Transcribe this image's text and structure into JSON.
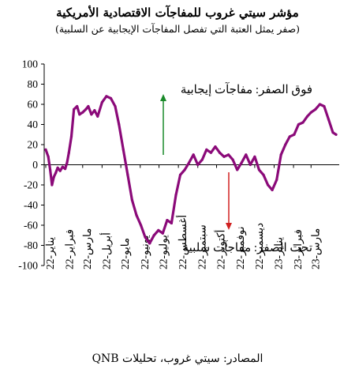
{
  "title": "مؤشر سيتي غروب للمفاجآت الاقتصادية الأمريكية",
  "subtitle": "(صفر يمثل العتبة التي تفصل المفاجآت الإيجابية عن السلبية)",
  "source": "المصادر: سيتي غروب، تحليلات QNB",
  "colors": {
    "series": "#8b0a79",
    "up_arrow": "#1a8a2a",
    "down_arrow": "#d02020",
    "axis": "#000000"
  },
  "chart_data": {
    "type": "line",
    "title": "مؤشر سيتي غروب للمفاجآت الاقتصادية الأمريكية",
    "subtitle": "(صفر يمثل العتبة التي تفصل المفاجآت الإيجابية عن السلبية)",
    "xlabel": "",
    "ylabel": "",
    "ylim": [
      -100,
      100
    ],
    "y_ticks": [
      -100,
      -80,
      -60,
      -40,
      -20,
      0,
      20,
      40,
      60,
      80,
      100
    ],
    "x_ticks": [
      "يناير-22",
      "فبراير-22",
      "مارس-22",
      "أبريل-22",
      "مايو-22",
      "يونيو-22",
      "يوليو-22",
      "أغسطس-22",
      "سبتمبر-22",
      "أكتوبر-22",
      "نوفمبر-22",
      "ديسمبر-22",
      "يناير-23",
      "فبراير-23",
      "مارس-23"
    ],
    "annotations": {
      "positive": "فوق الصفر: مفاجآت إيجابية",
      "negative": "تحت الصفر: مفاجآت سلبية"
    },
    "grid": false,
    "series": [
      {
        "x": [
          "2022-01-01",
          "2022-01-05",
          "2022-01-08",
          "2022-01-11",
          "2022-01-14",
          "2022-01-17",
          "2022-01-20",
          "2022-01-24",
          "2022-01-28",
          "2022-02-01",
          "2022-02-04",
          "2022-02-07",
          "2022-02-11",
          "2022-02-15",
          "2022-02-20",
          "2022-02-24",
          "2022-03-01",
          "2022-03-06",
          "2022-03-10",
          "2022-03-15",
          "2022-03-20",
          "2022-03-25",
          "2022-04-01",
          "2022-04-08",
          "2022-04-15",
          "2022-04-22",
          "2022-04-28",
          "2022-05-05",
          "2022-05-12",
          "2022-05-19",
          "2022-05-26",
          "2022-06-02",
          "2022-06-09",
          "2022-06-16",
          "2022-06-23",
          "2022-06-30",
          "2022-07-07",
          "2022-07-14",
          "2022-07-21",
          "2022-07-28",
          "2022-08-04",
          "2022-08-11",
          "2022-08-18",
          "2022-08-25",
          "2022-09-01",
          "2022-09-08",
          "2022-09-15",
          "2022-09-22",
          "2022-09-29",
          "2022-10-06",
          "2022-10-13",
          "2022-10-20",
          "2022-10-27",
          "2022-11-03",
          "2022-11-10",
          "2022-11-17",
          "2022-11-24",
          "2022-12-01",
          "2022-12-08",
          "2022-12-15",
          "2022-12-22",
          "2022-12-29",
          "2023-01-05",
          "2023-01-12",
          "2023-01-19",
          "2023-01-26",
          "2023-02-02",
          "2023-02-09",
          "2023-02-16",
          "2023-02-23",
          "2023-03-01",
          "2023-03-08",
          "2023-03-15",
          "2023-03-22",
          "2023-03-29",
          "2023-04-05",
          "2023-04-10"
        ],
        "values": [
          15,
          8,
          -5,
          -20,
          -12,
          -8,
          -3,
          -6,
          -2,
          -4,
          2,
          12,
          28,
          55,
          58,
          50,
          52,
          55,
          58,
          50,
          54,
          48,
          62,
          68,
          66,
          58,
          40,
          15,
          -10,
          -35,
          -50,
          -60,
          -72,
          -78,
          -70,
          -65,
          -68,
          -55,
          -58,
          -30,
          -10,
          -5,
          2,
          10,
          0,
          5,
          15,
          12,
          18,
          12,
          8,
          10,
          5,
          -5,
          2,
          10,
          0,
          8,
          -5,
          -10,
          -20,
          -25,
          -15,
          10,
          20,
          28,
          30,
          40,
          42,
          48,
          52,
          55,
          60,
          58,
          45,
          32,
          30
        ]
      }
    ]
  }
}
